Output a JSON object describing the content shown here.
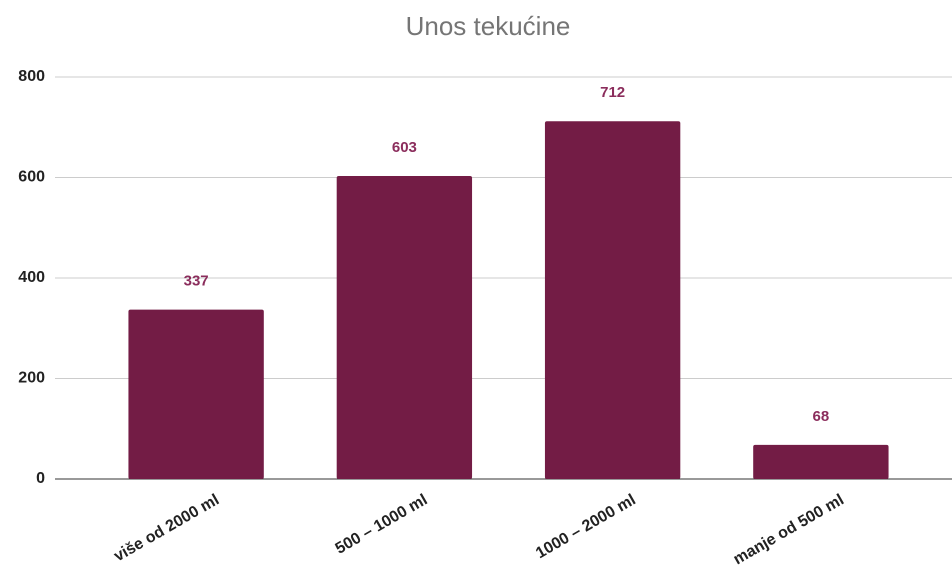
{
  "chart_data": {
    "type": "bar",
    "title": "Unos tekućine",
    "categories": [
      "više od 2000 ml",
      "500 – 1000 ml",
      "1000 – 2000 ml",
      "manje od 500 ml"
    ],
    "values": [
      337,
      603,
      712,
      68
    ],
    "color": "#731c45",
    "ylim": [
      0,
      800
    ],
    "yticks": [
      0,
      200,
      400,
      600,
      800
    ],
    "grid": true
  }
}
